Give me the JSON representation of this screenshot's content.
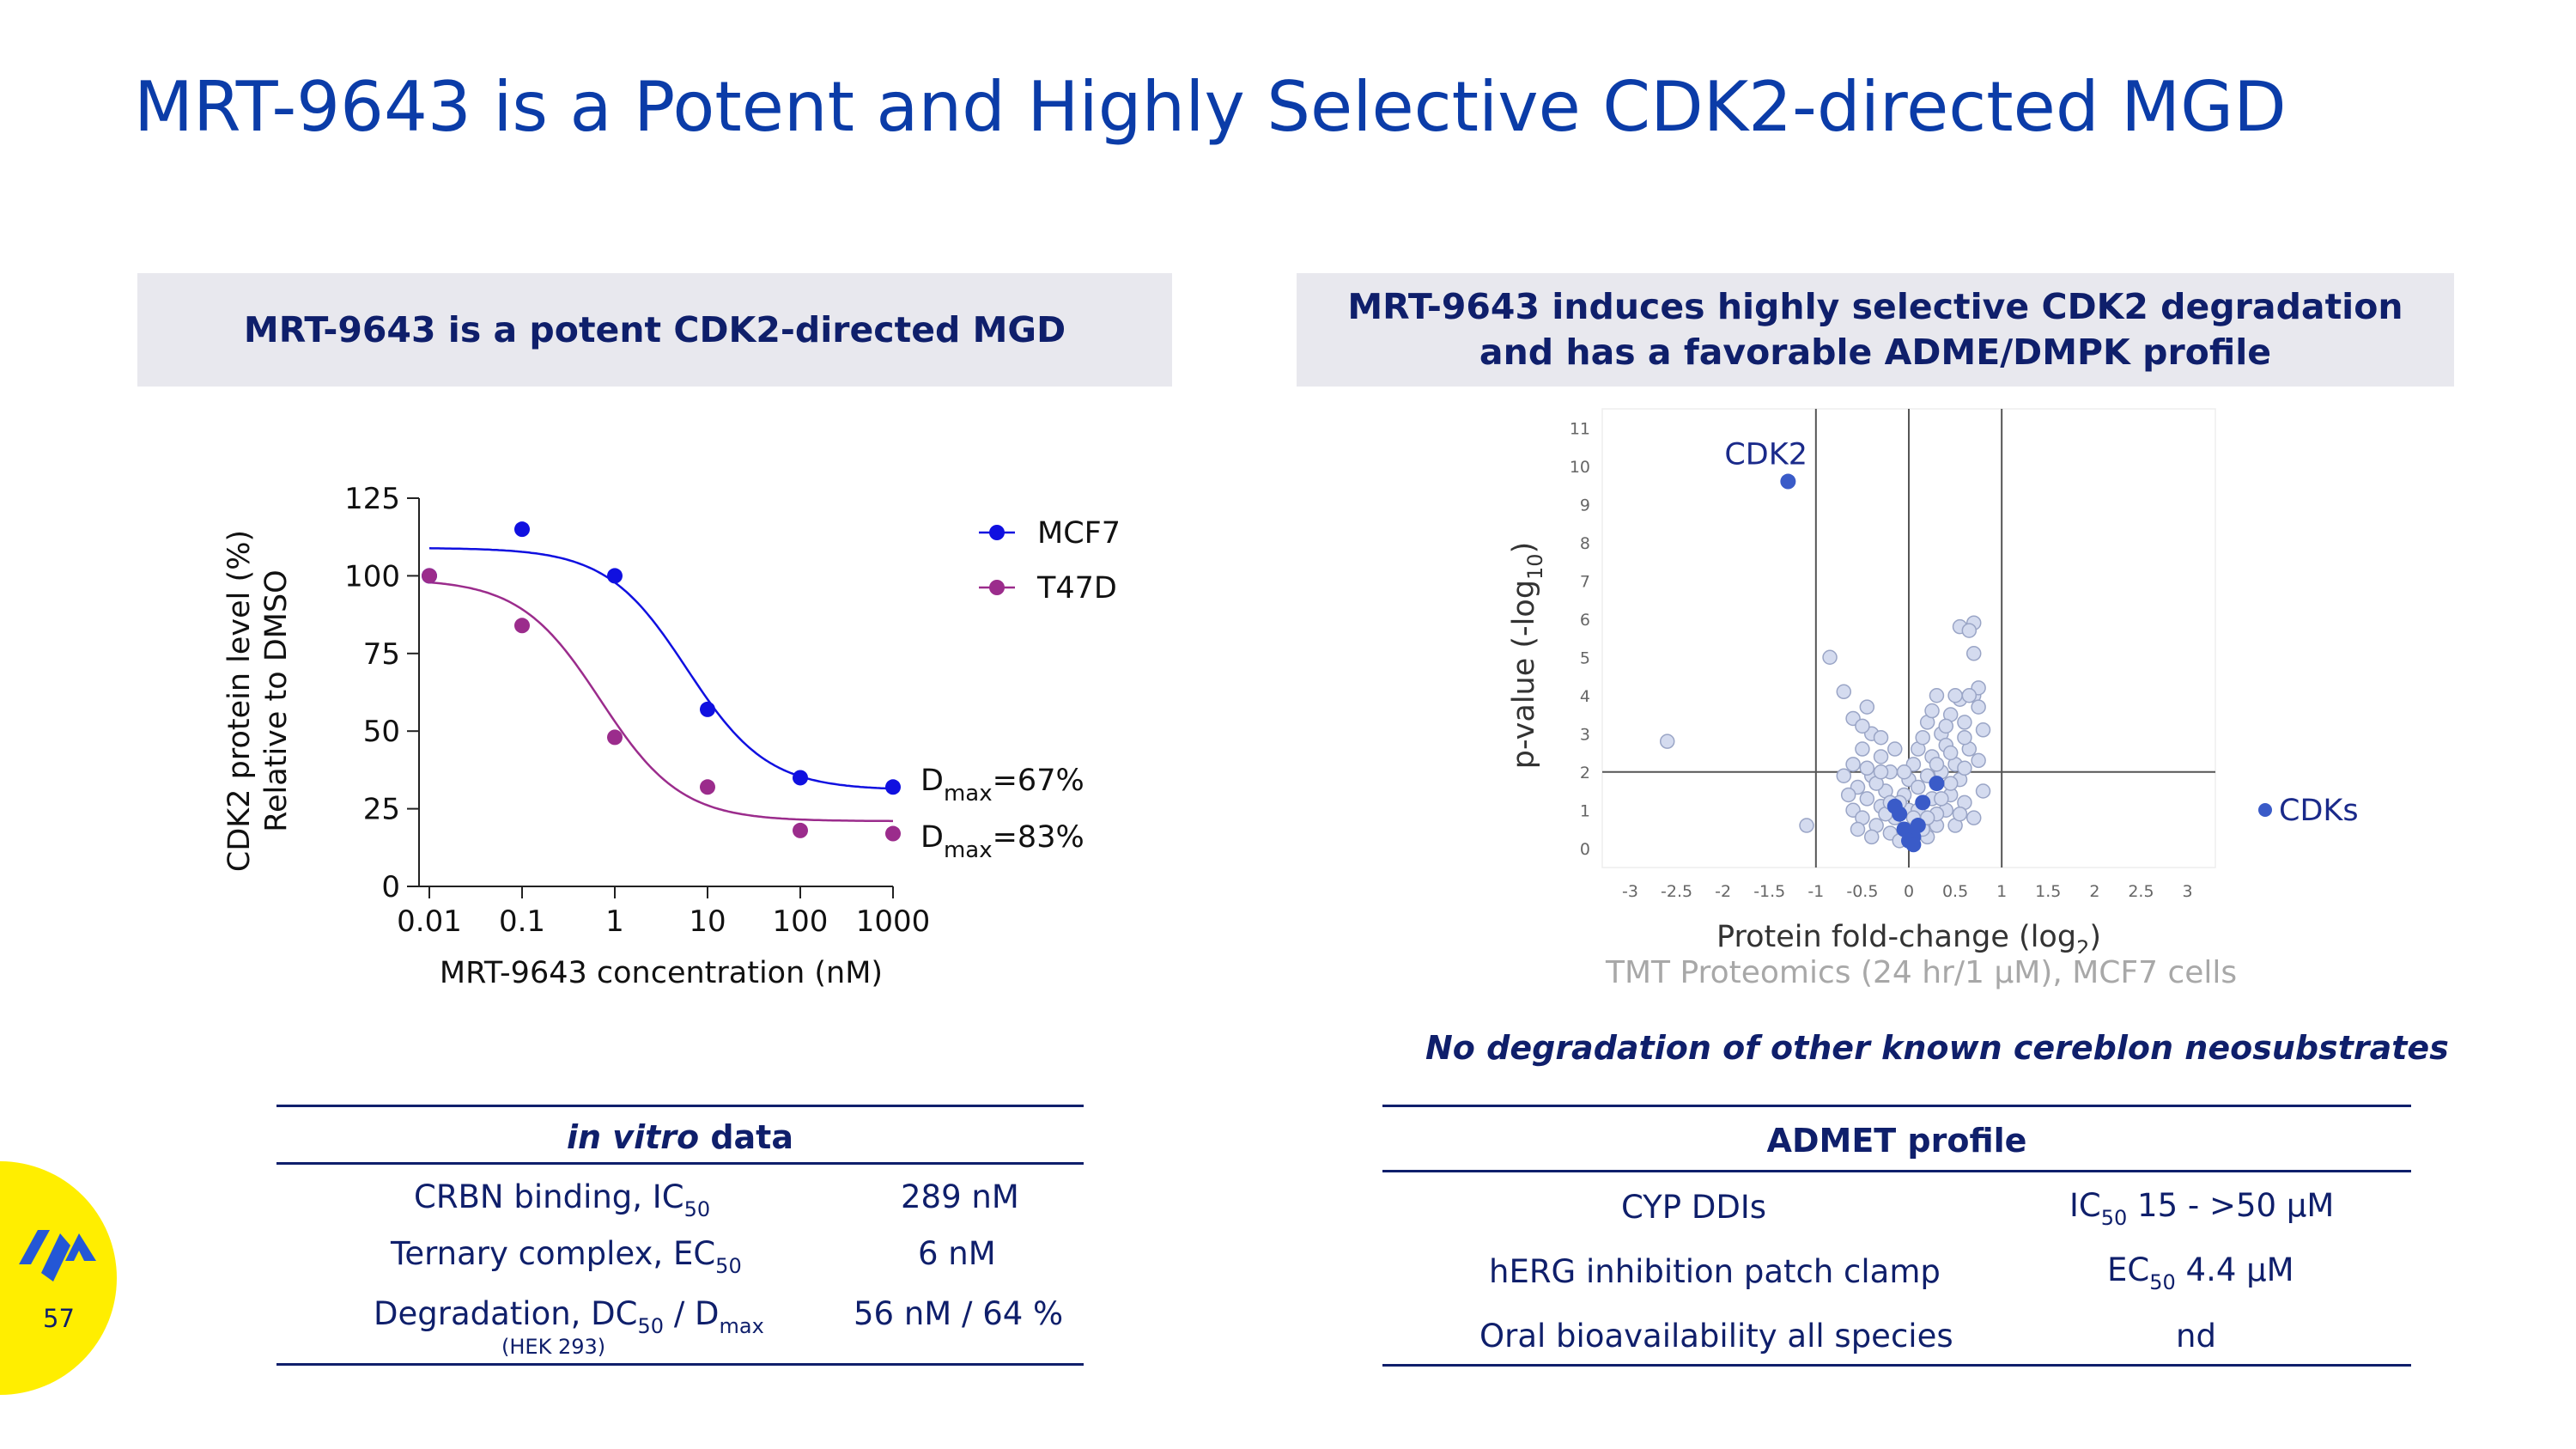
{
  "title": "MRT-9643 is a Potent and Highly Selective CDK2-directed MGD",
  "left_panel": {
    "header": "MRT-9643 is a potent CDK2-directed MGD"
  },
  "right_panel": {
    "header_line1": "MRT-9643 induces highly selective CDK2 degradation",
    "header_line2": "and has a favorable ADME/DMPK profile"
  },
  "colors": {
    "title": "#0b3ca8",
    "navy": "#0f1f6b",
    "mcf7": "#1010e0",
    "t47d": "#9b2c8c",
    "cdk": "#3a5bc8",
    "volcano_point": "#d4dbef",
    "header_bg": "#e8e8ee",
    "badge": "#ffee00"
  },
  "chart_data": [
    {
      "type": "line",
      "xlabel": "MRT-9643 concentration (nM)",
      "ylabel_line1": "CDK2 protein level (%)",
      "ylabel_line2": "Relative to DMSO",
      "x_scale": "log",
      "xlim": [
        0.01,
        1000
      ],
      "ylim": [
        0,
        125
      ],
      "x_ticks": [
        0.01,
        0.1,
        1,
        10,
        100,
        1000
      ],
      "x_tick_labels": [
        "0.01",
        "0.1",
        "1",
        "10",
        "100",
        "1000"
      ],
      "y_ticks": [
        0,
        25,
        50,
        75,
        100,
        125
      ],
      "y_tick_labels": [
        "0",
        "25",
        "50",
        "75",
        "100",
        "125"
      ],
      "legend_position": "top-right",
      "series": [
        {
          "name": "MCF7",
          "color": "#1010e0",
          "points": [
            [
              0.01,
              100
            ],
            [
              0.1,
              115
            ],
            [
              1,
              100
            ],
            [
              10,
              57
            ],
            [
              100,
              35
            ],
            [
              1000,
              32
            ]
          ],
          "fit": {
            "top": 109,
            "bottom": 31,
            "ec50": 6,
            "hill": 1.0
          },
          "annotation": {
            "base": "D",
            "sub": "max",
            "rest": "=67%"
          }
        },
        {
          "name": "T47D",
          "color": "#9b2c8c",
          "points": [
            [
              0.01,
              100
            ],
            [
              0.1,
              84
            ],
            [
              1,
              48
            ],
            [
              10,
              32
            ],
            [
              100,
              18
            ],
            [
              1000,
              17
            ]
          ],
          "fit": {
            "top": 99,
            "bottom": 21,
            "ec50": 0.7,
            "hill": 1.0
          },
          "annotation": {
            "base": "D",
            "sub": "max",
            "rest": "=83%"
          }
        }
      ]
    },
    {
      "type": "scatter",
      "xlabel_main": "Protein fold-change (log",
      "xlabel_sub": "2",
      "xlabel_close": ")",
      "ylabel_main": "p-value (-log",
      "ylabel_sub": "10",
      "ylabel_close": ")",
      "xlim": [
        -3.3,
        3.3
      ],
      "ylim": [
        -0.5,
        11.5
      ],
      "x_ticks": [
        -3,
        -2.5,
        -2,
        -1.5,
        -1,
        -0.5,
        0,
        0.5,
        1,
        1.5,
        2,
        2.5,
        3
      ],
      "x_tick_labels": [
        "-3",
        "-2.5",
        "-2",
        "-1.5",
        "-1",
        "-0.5",
        "0",
        "0.5",
        "1",
        "1.5",
        "2",
        "2.5",
        "3"
      ],
      "y_ticks": [
        0,
        1,
        2,
        3,
        4,
        5,
        6,
        7,
        8,
        9,
        10,
        11
      ],
      "y_tick_labels": [
        "0",
        "1",
        "2",
        "3",
        "4",
        "5",
        "6",
        "7",
        "8",
        "9",
        "10",
        "11"
      ],
      "threshold_lines": {
        "x": [
          -1,
          0,
          1
        ],
        "y": 2
      },
      "legend": "CDKs",
      "legend_position": "right",
      "highlight": {
        "label": "CDK2",
        "x": -1.3,
        "y": 9.6
      },
      "cdk_points": [
        [
          -0.15,
          1.1
        ],
        [
          -0.05,
          0.5
        ],
        [
          0.05,
          0.3
        ],
        [
          0.1,
          0.6
        ],
        [
          -0.1,
          0.9
        ],
        [
          0.0,
          0.2
        ],
        [
          0.15,
          1.2
        ],
        [
          0.3,
          1.7
        ],
        [
          0.05,
          0.1
        ]
      ],
      "other_points": [
        [
          -2.6,
          2.8
        ],
        [
          -1.1,
          0.6
        ],
        [
          -0.85,
          5.0
        ],
        [
          -0.7,
          4.1
        ],
        [
          -0.6,
          3.4
        ],
        [
          -0.45,
          3.7
        ],
        [
          -0.4,
          3.0
        ],
        [
          -0.5,
          3.2
        ],
        [
          -0.3,
          2.9
        ],
        [
          -0.6,
          2.2
        ],
        [
          -0.7,
          1.9
        ],
        [
          -0.55,
          1.6
        ],
        [
          -0.45,
          1.3
        ],
        [
          -0.6,
          1.0
        ],
        [
          -0.5,
          0.8
        ],
        [
          -0.35,
          0.6
        ],
        [
          -0.4,
          1.9
        ],
        [
          -0.3,
          2.4
        ],
        [
          -0.2,
          2.0
        ],
        [
          -0.25,
          1.5
        ],
        [
          -0.3,
          1.1
        ],
        [
          -0.15,
          0.8
        ],
        [
          -0.2,
          0.4
        ],
        [
          -0.1,
          0.2
        ],
        [
          -0.05,
          1.4
        ],
        [
          0.0,
          1.8
        ],
        [
          0.05,
          2.2
        ],
        [
          0.1,
          2.6
        ],
        [
          0.15,
          2.9
        ],
        [
          0.2,
          3.3
        ],
        [
          0.25,
          3.6
        ],
        [
          0.3,
          4.0
        ],
        [
          0.35,
          3.0
        ],
        [
          0.45,
          3.5
        ],
        [
          0.55,
          3.9
        ],
        [
          0.6,
          3.3
        ],
        [
          0.7,
          4.0
        ],
        [
          0.75,
          3.7
        ],
        [
          0.8,
          3.1
        ],
        [
          0.65,
          2.6
        ],
        [
          0.5,
          2.2
        ],
        [
          0.55,
          1.8
        ],
        [
          0.45,
          1.4
        ],
        [
          0.4,
          1.0
        ],
        [
          0.3,
          0.6
        ],
        [
          0.2,
          0.3
        ],
        [
          0.6,
          1.2
        ],
        [
          0.7,
          0.8
        ],
        [
          0.5,
          0.6
        ],
        [
          0.35,
          2.0
        ],
        [
          0.25,
          1.3
        ],
        [
          0.15,
          0.5
        ],
        [
          0.4,
          2.7
        ],
        [
          0.6,
          2.9
        ],
        [
          0.75,
          2.3
        ],
        [
          0.8,
          1.5
        ],
        [
          0.55,
          0.9
        ],
        [
          0.45,
          1.7
        ],
        [
          0.3,
          0.9
        ],
        [
          0.2,
          1.9
        ],
        [
          0.1,
          1.6
        ],
        [
          0.0,
          1.0
        ],
        [
          -0.05,
          2.0
        ],
        [
          -0.15,
          2.6
        ],
        [
          -0.25,
          0.9
        ],
        [
          -0.35,
          1.7
        ],
        [
          -0.45,
          2.1
        ],
        [
          -0.55,
          0.5
        ],
        [
          -0.65,
          1.4
        ],
        [
          -0.4,
          0.3
        ],
        [
          0.55,
          5.8
        ],
        [
          0.7,
          5.9
        ],
        [
          0.65,
          5.7
        ],
        [
          0.7,
          5.1
        ],
        [
          0.75,
          4.2
        ],
        [
          0.65,
          4.0
        ],
        [
          0.25,
          2.4
        ],
        [
          0.35,
          1.3
        ],
        [
          0.4,
          3.2
        ],
        [
          0.5,
          4.0
        ],
        [
          0.1,
          1.0
        ],
        [
          0.2,
          0.8
        ],
        [
          -0.1,
          1.2
        ],
        [
          -0.2,
          1.2
        ],
        [
          0.05,
          0.8
        ],
        [
          0.3,
          2.2
        ],
        [
          0.45,
          2.5
        ],
        [
          0.6,
          2.1
        ],
        [
          -0.3,
          2.0
        ],
        [
          -0.5,
          2.6
        ]
      ]
    }
  ],
  "caption": "TMT Proteomics (24 hr/1 µM), MCF7 cells",
  "no_degradation_note": "No degradation of other known cereblon neosubstrates",
  "invitro_table": {
    "header_em": "in vitro",
    "header_rest": " data",
    "rows": [
      {
        "label": "CRBN binding, IC",
        "label_sub": "50",
        "label_tail": "",
        "label_sub2": "",
        "value": "289 nM"
      },
      {
        "label": "Ternary complex, EC",
        "label_sub": "50",
        "label_tail": "",
        "label_sub2": "",
        "value": "6 nM"
      },
      {
        "label": "Degradation, DC",
        "label_sub": "50",
        "label_tail": " / D",
        "label_sub2": "max",
        "value": "56 nM / 64 %"
      }
    ],
    "footnote": "(HEK 293)"
  },
  "admet_table": {
    "header": "ADMET profile",
    "rows": [
      {
        "label": "CYP DDIs",
        "v_pre": "IC",
        "v_sub": "50",
        "v_post": " 15 - >50 µM"
      },
      {
        "label": "hERG inhibition patch clamp",
        "v_pre": "EC",
        "v_sub": "50",
        "v_post": " 4.4 µM"
      },
      {
        "label": "Oral bioavailability all species",
        "v_pre": "nd",
        "v_sub": "",
        "v_post": ""
      }
    ]
  },
  "page_number": "57",
  "logo_icon": "company-logo-icon"
}
